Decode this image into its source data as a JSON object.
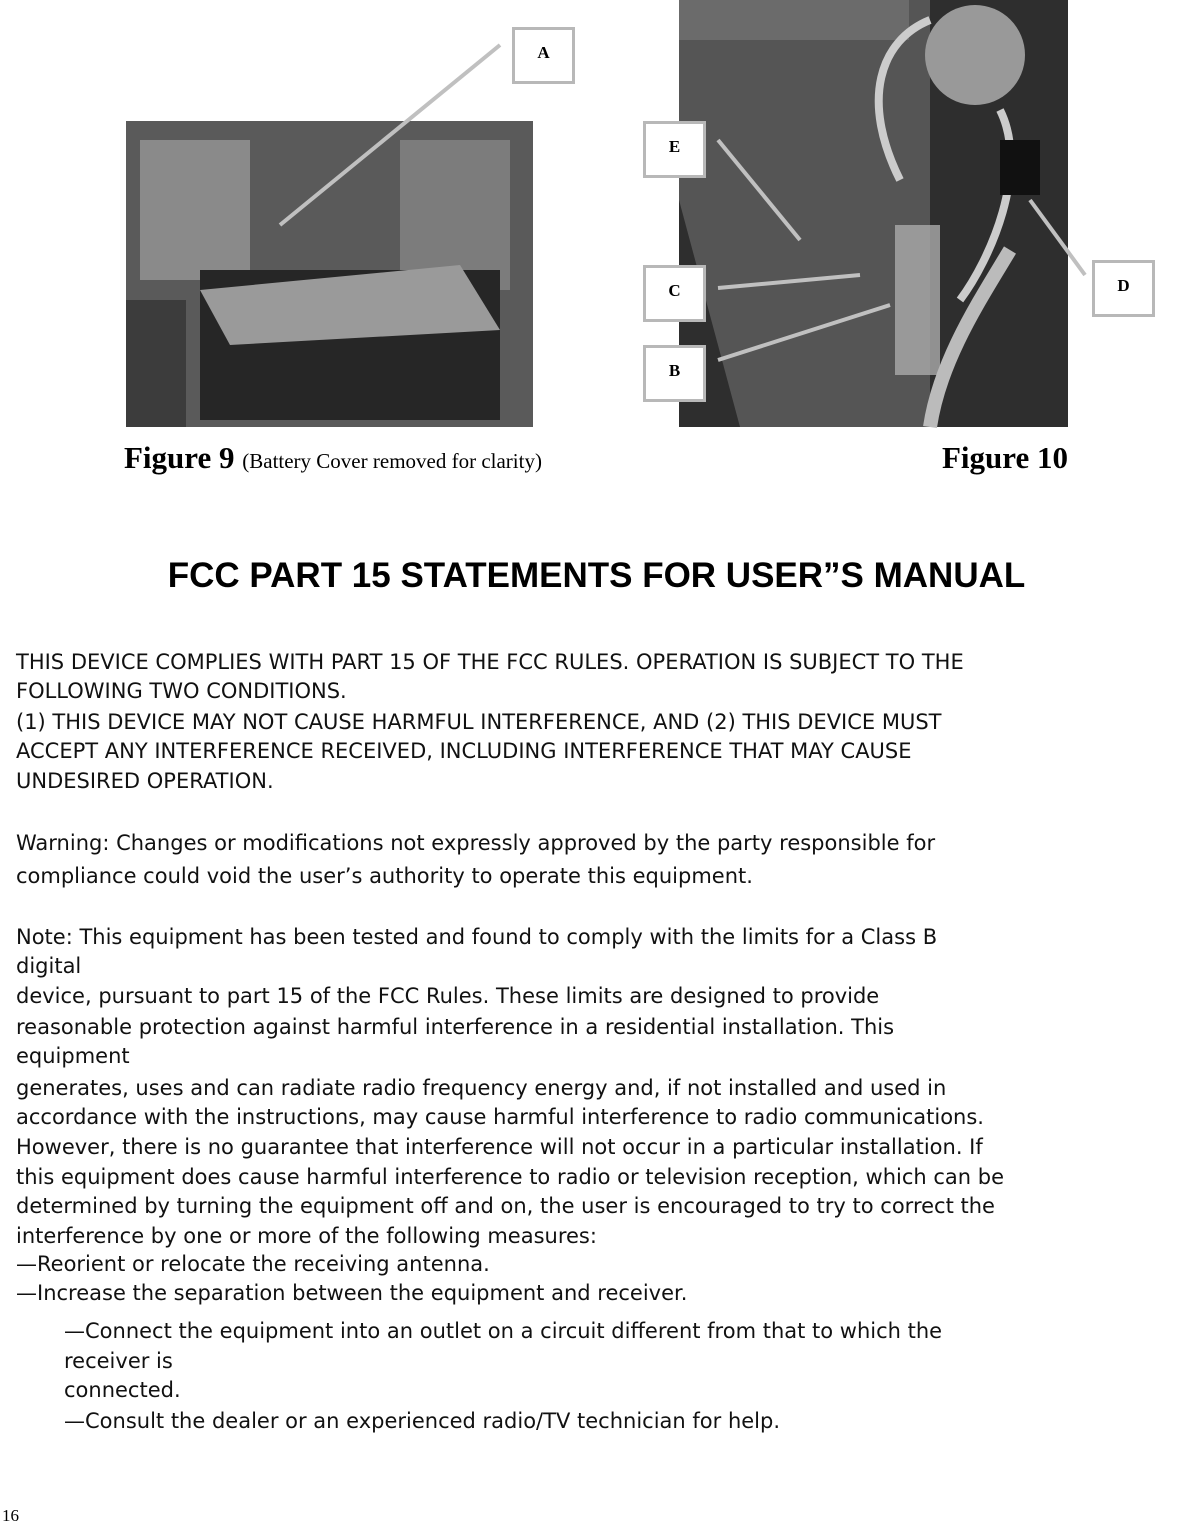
{
  "figures": {
    "callouts": [
      "A",
      "E",
      "C",
      "B",
      "D"
    ],
    "figure9": {
      "label": "Figure 9",
      "note": "(Battery Cover removed for clarity)"
    },
    "figure10": {
      "label": "Figure 10"
    }
  },
  "heading": "FCC PART 15 STATEMENTS FOR USER”S MANUAL",
  "statement": [
    "THIS DEVICE COMPLIES WITH PART 15 OF THE FCC RULES. OPERATION IS SUBJECT TO THE",
    "FOLLOWING TWO CONDITIONS.",
    "(1) THIS DEVICE MAY NOT CAUSE HARMFUL INTERFERENCE, AND (2) THIS DEVICE MUST",
    "ACCEPT ANY INTERFERENCE RECEIVED, INCLUDING INTERFERENCE THAT MAY CAUSE",
    "UNDESIRED OPERATION."
  ],
  "warning": [
    "Warning: Changes or modifications not expressly approved by the party responsible for",
    "compliance could void the user’s authority to operate this equipment."
  ],
  "note": [
    "Note: This equipment has been tested and found to comply with the limits for a Class B",
    "digital",
    "device, pursuant to part 15 of the FCC Rules. These limits are designed to provide",
    "reasonable protection against harmful interference in a residential installation. This",
    "equipment",
    "generates, uses and can radiate radio frequency energy and, if not installed and used in",
    "accordance with the instructions, may cause harmful interference to radio communications.",
    "However, there is no guarantee that interference will not occur in a particular installation. If",
    "this equipment does cause harmful interference to radio or television reception, which can be",
    "determined by turning the equipment off and on, the user is encouraged to try to correct the",
    "interference by one or more of the following measures:",
    "—Reorient or relocate the receiving antenna.",
    "—Increase the separation between the equipment and receiver."
  ],
  "measures": [
    "—Connect the equipment into an outlet on a circuit different from that to which the",
    "receiver is",
    "connected.",
    "—Consult the dealer or an experienced radio/TV technician for help."
  ],
  "page_number": "16"
}
